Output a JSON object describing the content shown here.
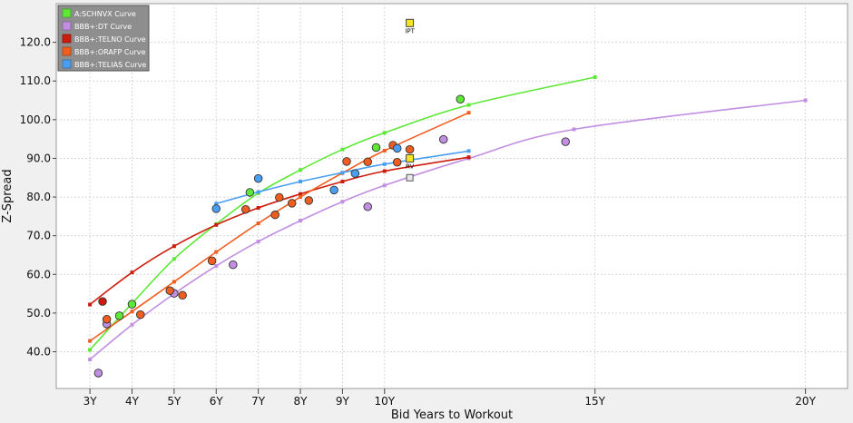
{
  "chart_data": {
    "type": "scatter",
    "xlabel": "Bid Years to Workout",
    "ylabel": "Z-Spread",
    "x_ticks": [
      {
        "value": 3,
        "label": "3Y"
      },
      {
        "value": 4,
        "label": "4Y"
      },
      {
        "value": 5,
        "label": "5Y"
      },
      {
        "value": 6,
        "label": "6Y"
      },
      {
        "value": 7,
        "label": "7Y"
      },
      {
        "value": 8,
        "label": "8Y"
      },
      {
        "value": 9,
        "label": "9Y"
      },
      {
        "value": 10,
        "label": "10Y"
      },
      {
        "value": 15,
        "label": "15Y"
      },
      {
        "value": 20,
        "label": "20Y"
      }
    ],
    "y_ticks": [
      {
        "value": 40,
        "label": "40.0"
      },
      {
        "value": 50,
        "label": "50.0"
      },
      {
        "value": 60,
        "label": "60.0"
      },
      {
        "value": 70,
        "label": "70.0"
      },
      {
        "value": 80,
        "label": "80.0"
      },
      {
        "value": 90,
        "label": "90.0"
      },
      {
        "value": 100,
        "label": "100.0"
      },
      {
        "value": 110,
        "label": "110.0"
      },
      {
        "value": 120,
        "label": "120.0"
      }
    ],
    "xlim": [
      2.2,
      21
    ],
    "ylim": [
      30.5,
      130
    ],
    "grid": true,
    "legend_position": "top-left",
    "series": [
      {
        "name": "A:SCHNVX Curve",
        "color": "#5de837",
        "curve": [
          [
            3,
            40.5
          ],
          [
            4,
            52.5
          ],
          [
            5,
            64
          ],
          [
            6,
            73
          ],
          [
            7,
            81
          ],
          [
            8,
            87
          ],
          [
            9,
            92.3
          ],
          [
            10,
            96.6
          ],
          [
            12,
            103.8
          ],
          [
            15,
            111
          ]
        ],
        "bonds": [
          [
            3.7,
            49.3
          ],
          [
            4,
            52.3
          ],
          [
            6.8,
            81.2
          ],
          [
            9.8,
            92.8
          ],
          [
            11.8,
            105.3
          ]
        ]
      },
      {
        "name": "BBB+:DT Curve",
        "color": "#c18ee2",
        "curve": [
          [
            3,
            38
          ],
          [
            4,
            47
          ],
          [
            5,
            55
          ],
          [
            6,
            62.2
          ],
          [
            7,
            68.5
          ],
          [
            8,
            73.9
          ],
          [
            9,
            78.8
          ],
          [
            10,
            83
          ],
          [
            12,
            90
          ],
          [
            14.5,
            97.5
          ],
          [
            20,
            105
          ]
        ],
        "bonds": [
          [
            3.2,
            34.5
          ],
          [
            3.4,
            47.2
          ],
          [
            5,
            55.1
          ],
          [
            6.4,
            62.5
          ],
          [
            9.6,
            77.5
          ],
          [
            11.4,
            94.9
          ],
          [
            14.3,
            94.3
          ]
        ]
      },
      {
        "name": "BBB+:TELNO Curve",
        "color": "#cc1c0e",
        "curve": [
          [
            3,
            52.2
          ],
          [
            4,
            60.5
          ],
          [
            5,
            67.3
          ],
          [
            6,
            72.8
          ],
          [
            7,
            77.2
          ],
          [
            8,
            80.8
          ],
          [
            9,
            84
          ],
          [
            10,
            86.7
          ],
          [
            12,
            90.3
          ]
        ],
        "bonds": [
          [
            3.3,
            53
          ]
        ]
      },
      {
        "name": "BBB+:ORAFP Curve",
        "color": "#f05d1e",
        "curve": [
          [
            3,
            42.8
          ],
          [
            4,
            50.4
          ],
          [
            5,
            58.1
          ],
          [
            6,
            65.8
          ],
          [
            7,
            73.2
          ],
          [
            8,
            80
          ],
          [
            9,
            86.2
          ],
          [
            10,
            92
          ],
          [
            12,
            101.8
          ]
        ],
        "bonds": [
          [
            3.4,
            48.4
          ],
          [
            4.2,
            49.6
          ],
          [
            4.9,
            55.8
          ],
          [
            5.2,
            54.6
          ],
          [
            5.9,
            63.5
          ],
          [
            6.7,
            76.8
          ],
          [
            7.4,
            75.4
          ],
          [
            7.5,
            79.9
          ],
          [
            7.8,
            78.4
          ],
          [
            8.2,
            79.1
          ],
          [
            9.1,
            89.2
          ],
          [
            9.6,
            89.1
          ],
          [
            10.2,
            93.4
          ],
          [
            10.3,
            89
          ],
          [
            10.6,
            92.3
          ]
        ]
      },
      {
        "name": "BBB+:TELIAS Curve",
        "color": "#4a9ef0",
        "curve": [
          [
            6,
            78.3
          ],
          [
            7,
            81.3
          ],
          [
            8,
            84
          ],
          [
            9,
            86.3
          ],
          [
            10,
            88.5
          ],
          [
            12,
            91.9
          ]
        ],
        "bonds": [
          [
            6,
            77
          ],
          [
            7,
            84.8
          ],
          [
            8.8,
            81.8
          ],
          [
            9.3,
            86.1
          ],
          [
            10.3,
            92.6
          ]
        ]
      }
    ],
    "annotations": [
      {
        "label": "IPT",
        "x": 10.6,
        "y": 125,
        "kind": "filled-square",
        "color": "#f5e61f"
      },
      {
        "label": "RV",
        "x": 10.6,
        "y": 90,
        "kind": "filled-square",
        "color": "#f5e61f"
      },
      {
        "label": "",
        "x": 10.6,
        "y": 85,
        "kind": "hollow-square",
        "color": "#e8e8e8"
      }
    ]
  }
}
